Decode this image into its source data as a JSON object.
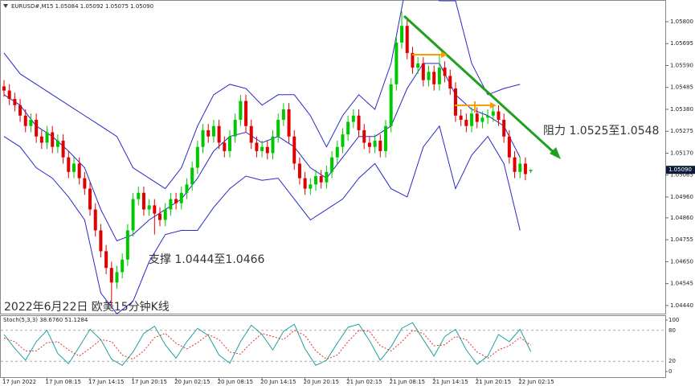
{
  "chart_data": {
    "type": "candlestick",
    "header": "EURUSD#,M15  1.05084 1.05092 1.05075 1.05090",
    "caption": "2022年6月22日 欧美15分钟K线",
    "resistance_note": "阻力 1.0525至1.0548",
    "support_note": "支撑 1.0444至1.0466",
    "up_color": "#00c800",
    "down_color": "#e00000",
    "ylim": [
      1.04401,
      1.05904
    ],
    "yticks": [
      {
        "value": 1.058,
        "label": "1.05800"
      },
      1.05695,
      {
        "value": 1.0559,
        "label": "1.05590"
      },
      1.05485,
      {
        "value": 1.0538,
        "label": "1.05380"
      },
      1.05275,
      {
        "value": 1.0517,
        "label": "1.05170"
      },
      1.05065,
      {
        "value": 1.0496,
        "label": "1.04960"
      },
      {
        "value": 1.0486,
        "label": "1.04860"
      },
      1.04755,
      {
        "value": 1.0465,
        "label": "1.04650"
      },
      1.04545,
      {
        "value": 1.0444,
        "label": "1.04440"
      }
    ],
    "last_price": {
      "value": 1.0509,
      "label": "1.05090"
    },
    "xticks": [
      {
        "value": 0,
        "label": "17 Jun 2022"
      },
      {
        "value": 8,
        "label": "17 Jun 08:15"
      },
      {
        "value": 16,
        "label": "17 Jun 14:15"
      },
      {
        "value": 24,
        "label": "17 Jun 20:15"
      },
      {
        "value": 32,
        "label": "20 Jun 02:15"
      },
      {
        "value": 40,
        "label": "20 Jun 08:15"
      },
      {
        "value": 48,
        "label": "20 Jun 14:15"
      },
      {
        "value": 56,
        "label": "20 Jun 20:15"
      },
      {
        "value": 64,
        "label": "21 Jun 02:15"
      },
      {
        "value": 72,
        "label": "21 Jun 08:15"
      },
      {
        "value": 80,
        "label": "21 Jun 14:15"
      },
      {
        "value": 88,
        "label": "21 Jun 20:15"
      },
      {
        "value": 96,
        "label": "22 Jun 02:15"
      }
    ],
    "open": [
      1.0549,
      1.0547,
      1.0543,
      1.054,
      1.0535,
      1.053,
      1.0533,
      1.0525,
      1.0522,
      1.0527,
      1.052,
      1.0523,
      1.0515,
      1.0508,
      1.0512,
      1.0505,
      1.05,
      1.049,
      1.048,
      1.047,
      1.0462,
      1.0455,
      1.046,
      1.0466,
      1.048,
      1.0495,
      1.0498,
      1.049,
      1.0492,
      1.0488,
      1.0485,
      1.049,
      1.0495,
      1.0493,
      1.0498,
      1.0502,
      1.051,
      1.052,
      1.0528,
      1.0525,
      1.053,
      1.0522,
      1.0518,
      1.0525,
      1.0533,
      1.0542,
      1.053,
      1.0522,
      1.0518,
      1.052,
      1.0517,
      1.0525,
      1.0533,
      1.0538,
      1.0525,
      1.0512,
      1.0505,
      1.05,
      1.0502,
      1.0506,
      1.0503,
      1.0508,
      1.0515,
      1.052,
      1.0526,
      1.0532,
      1.0535,
      1.0528,
      1.0522,
      1.052,
      1.0523,
      1.0518,
      1.053,
      1.055,
      1.057,
      1.0578,
      1.0565,
      1.0558,
      1.056,
      1.0552,
      1.0556,
      1.055,
      1.0558,
      1.0554,
      1.0548,
      1.0535,
      1.0533,
      1.053,
      1.0536,
      1.0532,
      1.0534,
      1.0535,
      1.0537,
      1.0533,
      1.0525,
      1.0515,
      1.0508,
      1.0512,
      1.05084
    ],
    "high": [
      1.0552,
      1.055,
      1.0546,
      1.0543,
      1.0538,
      1.0536,
      1.0536,
      1.0528,
      1.053,
      1.053,
      1.0526,
      1.0526,
      1.0518,
      1.0515,
      1.0515,
      1.0508,
      1.0503,
      1.0493,
      1.0483,
      1.0473,
      1.0465,
      1.0463,
      1.0469,
      1.0483,
      1.0498,
      1.0501,
      1.0501,
      1.0495,
      1.0495,
      1.0491,
      1.0493,
      1.0498,
      1.0498,
      1.0501,
      1.0505,
      1.0513,
      1.0523,
      1.0531,
      1.0531,
      1.0533,
      1.0533,
      1.0525,
      1.0528,
      1.0536,
      1.0545,
      1.0545,
      1.0533,
      1.0525,
      1.0523,
      1.0523,
      1.0528,
      1.0536,
      1.0541,
      1.0541,
      1.0528,
      1.0515,
      1.0508,
      1.0505,
      1.0509,
      1.0509,
      1.0511,
      1.0518,
      1.0523,
      1.0529,
      1.0535,
      1.0538,
      1.0538,
      1.0531,
      1.0525,
      1.0526,
      1.0526,
      1.0533,
      1.0553,
      1.0573,
      1.0585,
      1.0581,
      1.0568,
      1.0563,
      1.0563,
      1.0559,
      1.0559,
      1.0564,
      1.0561,
      1.0557,
      1.0551,
      1.0538,
      1.0536,
      1.0539,
      1.0539,
      1.0537,
      1.0538,
      1.054,
      1.054,
      1.0536,
      1.0528,
      1.0518,
      1.0515,
      1.0515,
      1.05092
    ],
    "low": [
      1.0544,
      1.054,
      1.0537,
      1.0532,
      1.0527,
      1.0527,
      1.0522,
      1.0519,
      1.0519,
      1.0517,
      1.0517,
      1.0512,
      1.0505,
      1.0505,
      1.0502,
      1.0497,
      1.0487,
      1.0477,
      1.0467,
      1.0459,
      1.0444,
      1.0452,
      1.0457,
      1.0463,
      1.0477,
      1.0492,
      1.0487,
      1.0487,
      1.0478,
      1.0482,
      1.0482,
      1.0487,
      1.049,
      1.049,
      1.0495,
      1.0499,
      1.0507,
      1.0517,
      1.0522,
      1.0522,
      1.0519,
      1.0515,
      1.0515,
      1.0522,
      1.053,
      1.0527,
      1.0519,
      1.0515,
      1.0515,
      1.0514,
      1.0514,
      1.0522,
      1.053,
      1.0522,
      1.0509,
      1.0502,
      1.0497,
      1.0497,
      1.0499,
      1.05,
      1.05,
      1.0505,
      1.0512,
      1.0517,
      1.0523,
      1.0529,
      1.0525,
      1.0519,
      1.0517,
      1.0517,
      1.0515,
      1.0515,
      1.0527,
      1.0547,
      1.0567,
      1.0562,
      1.0555,
      1.0555,
      1.0549,
      1.0549,
      1.0547,
      1.0547,
      1.0551,
      1.0545,
      1.0532,
      1.053,
      1.0527,
      1.0527,
      1.0529,
      1.0529,
      1.0531,
      1.0532,
      1.053,
      1.0522,
      1.0512,
      1.0505,
      1.0505,
      1.0504,
      1.05075
    ],
    "close": [
      1.0547,
      1.0543,
      1.054,
      1.0535,
      1.053,
      1.0533,
      1.0525,
      1.0522,
      1.0527,
      1.052,
      1.0523,
      1.0515,
      1.0508,
      1.0512,
      1.0505,
      1.05,
      1.049,
      1.048,
      1.047,
      1.0462,
      1.0455,
      1.046,
      1.0466,
      1.048,
      1.0495,
      1.0498,
      1.049,
      1.0492,
      1.0488,
      1.0485,
      1.049,
      1.0495,
      1.0493,
      1.0498,
      1.0502,
      1.051,
      1.052,
      1.0528,
      1.0525,
      1.053,
      1.0522,
      1.0518,
      1.0525,
      1.0533,
      1.0542,
      1.053,
      1.0522,
      1.0518,
      1.052,
      1.0517,
      1.0525,
      1.0533,
      1.0538,
      1.0525,
      1.0512,
      1.0505,
      1.05,
      1.0502,
      1.0506,
      1.0503,
      1.0508,
      1.0515,
      1.052,
      1.0526,
      1.0532,
      1.0535,
      1.0528,
      1.0522,
      1.052,
      1.0523,
      1.0518,
      1.053,
      1.055,
      1.057,
      1.0578,
      1.0565,
      1.0558,
      1.056,
      1.0552,
      1.0556,
      1.055,
      1.0558,
      1.0554,
      1.0548,
      1.0535,
      1.0533,
      1.053,
      1.0536,
      1.0532,
      1.0534,
      1.0535,
      1.0537,
      1.0533,
      1.0525,
      1.0515,
      1.0508,
      1.0512,
      1.0507,
      1.0509
    ],
    "bands": {
      "color": "#2828c8",
      "x": [
        0,
        3,
        6,
        9,
        12,
        15,
        18,
        21,
        24,
        27,
        30,
        33,
        36,
        39,
        42,
        45,
        48,
        51,
        54,
        57,
        60,
        63,
        66,
        69,
        72,
        75,
        78,
        81,
        84,
        87,
        90,
        93,
        96
      ],
      "upper": [
        1.0565,
        1.0555,
        1.055,
        1.0545,
        1.054,
        1.0535,
        1.053,
        1.0525,
        1.051,
        1.0505,
        1.05,
        1.051,
        1.053,
        1.0545,
        1.055,
        1.0548,
        1.054,
        1.0545,
        1.0545,
        1.0535,
        1.052,
        1.0535,
        1.0545,
        1.0538,
        1.056,
        1.06,
        1.06,
        1.059,
        1.059,
        1.056,
        1.0545,
        1.0548,
        1.055
      ],
      "middle": [
        1.0545,
        1.054,
        1.053,
        1.0525,
        1.0518,
        1.051,
        1.049,
        1.0475,
        1.0478,
        1.0485,
        1.049,
        1.0495,
        1.0505,
        1.0518,
        1.0525,
        1.0527,
        1.0522,
        1.0525,
        1.052,
        1.051,
        1.0505,
        1.0515,
        1.0525,
        1.0525,
        1.053,
        1.0548,
        1.056,
        1.056,
        1.0545,
        1.0538,
        1.0535,
        1.053,
        1.0515
      ],
      "lower": [
        1.0525,
        1.052,
        1.051,
        1.0505,
        1.0496,
        1.0485,
        1.045,
        1.044,
        1.0446,
        1.0465,
        1.0478,
        1.048,
        1.048,
        1.0491,
        1.05,
        1.0506,
        1.0504,
        1.0505,
        1.0495,
        1.0485,
        1.049,
        1.0495,
        1.0505,
        1.0512,
        1.05,
        1.0496,
        1.052,
        1.053,
        1.05,
        1.0516,
        1.0525,
        1.0512,
        1.048
      ]
    },
    "stoch": {
      "label": "Stoch(5,3,3) 38.6760 51.1284",
      "k_color": "#20a0a0",
      "d_color": "#e03030",
      "ylim": [
        0,
        100
      ],
      "yticks": [
        100,
        80,
        20,
        0
      ],
      "x": [
        0,
        2,
        4,
        6,
        8,
        10,
        12,
        14,
        16,
        18,
        20,
        22,
        24,
        26,
        28,
        30,
        32,
        34,
        36,
        38,
        40,
        42,
        44,
        46,
        48,
        50,
        52,
        54,
        56,
        58,
        60,
        62,
        64,
        66,
        68,
        70,
        72,
        74,
        76,
        78,
        80,
        82,
        84,
        86,
        88,
        90,
        92,
        94,
        96,
        98
      ],
      "k": [
        72,
        45,
        22,
        58,
        80,
        35,
        15,
        48,
        82,
        62,
        24,
        12,
        38,
        74,
        88,
        52,
        26,
        58,
        84,
        70,
        32,
        16,
        58,
        90,
        72,
        42,
        78,
        92,
        44,
        12,
        22,
        55,
        86,
        92,
        60,
        22,
        48,
        84,
        95,
        62,
        30,
        68,
        82,
        42,
        14,
        30,
        72,
        58,
        82,
        38.676
      ],
      "d": [
        65,
        58,
        40,
        40,
        56,
        58,
        42,
        30,
        45,
        62,
        58,
        32,
        24,
        40,
        66,
        74,
        55,
        44,
        56,
        72,
        62,
        38,
        34,
        56,
        74,
        68,
        62,
        80,
        70,
        40,
        24,
        32,
        58,
        80,
        78,
        50,
        40,
        58,
        80,
        74,
        50,
        52,
        68,
        62,
        38,
        26,
        42,
        50,
        66,
        51.1284
      ]
    }
  }
}
